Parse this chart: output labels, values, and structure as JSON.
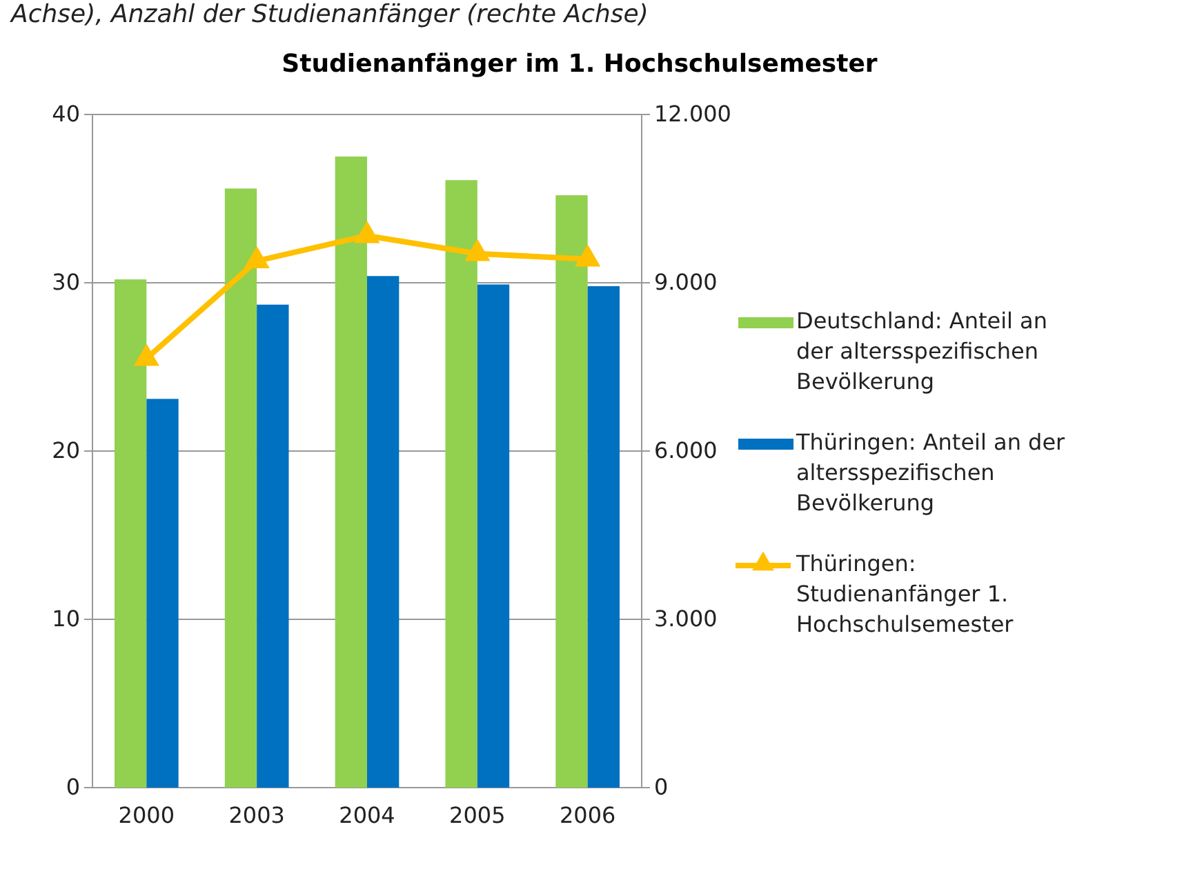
{
  "chart_data": {
    "type": "bar",
    "title": "Studienanfänger im 1. Hochschulsemester",
    "annotations": [
      "Achse), Anzahl der Studienanfänger (rechte Achse)"
    ],
    "categories": [
      "2000",
      "2003",
      "2004",
      "2005",
      "2006"
    ],
    "series": [
      {
        "name": "Deutschland: Anteil an der altersspezifischen Bevölkerung",
        "color": "#92d050",
        "values": [
          30.2,
          35.6,
          37.5,
          36.1,
          35.2
        ]
      },
      {
        "name": "Thüringen: Anteil an der altersspezifischen Bevölkerung",
        "color": "#0070c0",
        "values": [
          23.1,
          28.7,
          30.4,
          29.9,
          29.8
        ]
      },
      {
        "name": "Thüringen: Studienanfänger 1. Hochschulsemester",
        "type": "line",
        "axis": "y2",
        "color": "#ffc000",
        "marker": "triangle",
        "values": [
          7650,
          9390,
          9840,
          9520,
          9420
        ]
      }
    ],
    "ylim": [
      0,
      40
    ],
    "yticks": [
      0,
      10,
      20,
      30,
      40
    ],
    "y2lim": [
      0,
      12000
    ],
    "y2ticks": [
      {
        "value": 0,
        "label": "0"
      },
      {
        "value": 3000,
        "label": "3.000"
      },
      {
        "value": 6000,
        "label": "6.000"
      },
      {
        "value": 9000,
        "label": "9.000"
      },
      {
        "value": 12000,
        "label": "12.000"
      }
    ],
    "grid": "y",
    "legend": "right"
  }
}
